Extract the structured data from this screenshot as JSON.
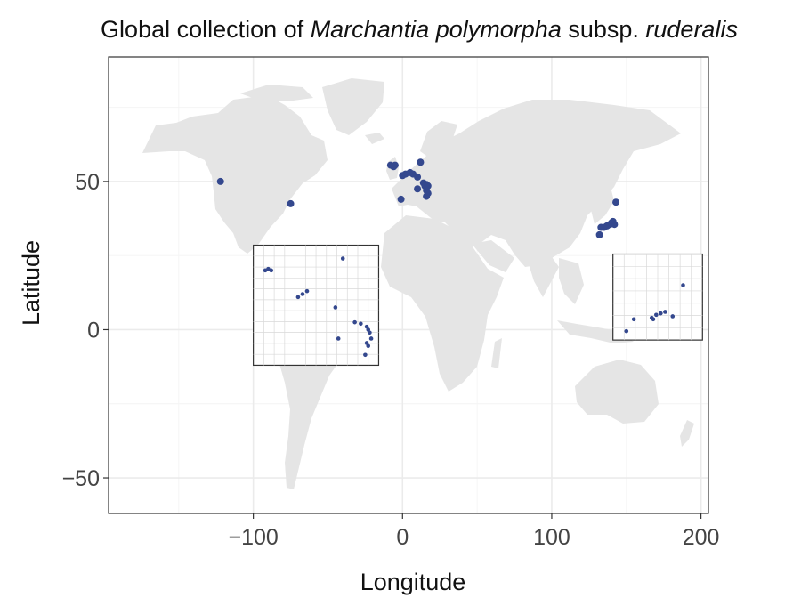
{
  "title": {
    "parts": [
      {
        "text": "Global collection of ",
        "style": "normal"
      },
      {
        "text": "Marchantia polymorpha",
        "style": "italic"
      },
      {
        "text": " subsp. ",
        "style": "normal"
      },
      {
        "text": "ruderalis",
        "style": "italic"
      }
    ]
  },
  "chart_data": {
    "type": "scatter",
    "xlabel": "Longitude",
    "ylabel": "Latitude",
    "xlim": [
      -197,
      205
    ],
    "ylim": [
      -62,
      92
    ],
    "x_ticks": [
      -100,
      0,
      100,
      200
    ],
    "y_ticks": [
      -50,
      0,
      50
    ],
    "x_tick_labels": [
      "−100",
      "0",
      "100",
      "200"
    ],
    "y_tick_labels": [
      "−50",
      "0",
      "50"
    ],
    "grid": true,
    "point_color": "#34488e",
    "land_color": "#e5e5e5",
    "points": [
      {
        "lon": -122,
        "lat": 50
      },
      {
        "lon": -75,
        "lat": 42.5
      },
      {
        "lon": -8,
        "lat": 55.5
      },
      {
        "lon": -6,
        "lat": 55
      },
      {
        "lon": -5,
        "lat": 55.5
      },
      {
        "lon": 0,
        "lat": 52
      },
      {
        "lon": 2,
        "lat": 52.5
      },
      {
        "lon": 5,
        "lat": 53
      },
      {
        "lon": 7,
        "lat": 52.5
      },
      {
        "lon": 10,
        "lat": 51.5
      },
      {
        "lon": 12,
        "lat": 56.5
      },
      {
        "lon": 14,
        "lat": 49.5
      },
      {
        "lon": 15,
        "lat": 48.5
      },
      {
        "lon": 16,
        "lat": 49
      },
      {
        "lon": 17,
        "lat": 48.5
      },
      {
        "lon": 16,
        "lat": 47
      },
      {
        "lon": 17,
        "lat": 46
      },
      {
        "lon": 16,
        "lat": 45
      },
      {
        "lon": 10,
        "lat": 47.5
      },
      {
        "lon": -1,
        "lat": 44
      },
      {
        "lon": 132,
        "lat": 32
      },
      {
        "lon": 133,
        "lat": 34.5
      },
      {
        "lon": 135,
        "lat": 34.5
      },
      {
        "lon": 137,
        "lat": 35
      },
      {
        "lon": 139,
        "lat": 35.5
      },
      {
        "lon": 140,
        "lat": 36
      },
      {
        "lon": 141,
        "lat": 36.5
      },
      {
        "lon": 142,
        "lat": 35.5
      },
      {
        "lon": 143,
        "lat": 43
      }
    ],
    "insets": [
      {
        "name": "europe",
        "frame_extent": {
          "lon": [
            -100,
            -16
          ],
          "lat": [
            -12,
            28.5
          ]
        },
        "points": [
          {
            "lon": -92,
            "lat": 20
          },
          {
            "lon": -90,
            "lat": 20.5
          },
          {
            "lon": -88,
            "lat": 20
          },
          {
            "lon": -40,
            "lat": 24
          },
          {
            "lon": -70,
            "lat": 11
          },
          {
            "lon": -67,
            "lat": 12
          },
          {
            "lon": -64,
            "lat": 13
          },
          {
            "lon": -45,
            "lat": 7.5
          },
          {
            "lon": -32,
            "lat": 2.5
          },
          {
            "lon": -28,
            "lat": 2
          },
          {
            "lon": -24,
            "lat": 1
          },
          {
            "lon": -23,
            "lat": 0
          },
          {
            "lon": -22,
            "lat": -1
          },
          {
            "lon": -21,
            "lat": -3
          },
          {
            "lon": -24,
            "lat": -4.5
          },
          {
            "lon": -23,
            "lat": -5.5
          },
          {
            "lon": -43,
            "lat": -3
          },
          {
            "lon": -25,
            "lat": -8.5
          }
        ]
      },
      {
        "name": "japan",
        "frame_extent": {
          "lon": [
            141,
            201
          ],
          "lat": [
            -3.5,
            25.5
          ]
        },
        "points": [
          {
            "lon": 188,
            "lat": 15
          },
          {
            "lon": 155,
            "lat": 3.5
          },
          {
            "lon": 167,
            "lat": 4
          },
          {
            "lon": 170,
            "lat": 5
          },
          {
            "lon": 173,
            "lat": 5.5
          },
          {
            "lon": 176,
            "lat": 6
          },
          {
            "lon": 181,
            "lat": 4.5
          },
          {
            "lon": 168,
            "lat": 3.5
          },
          {
            "lon": 150,
            "lat": -0.5
          }
        ]
      }
    ]
  }
}
